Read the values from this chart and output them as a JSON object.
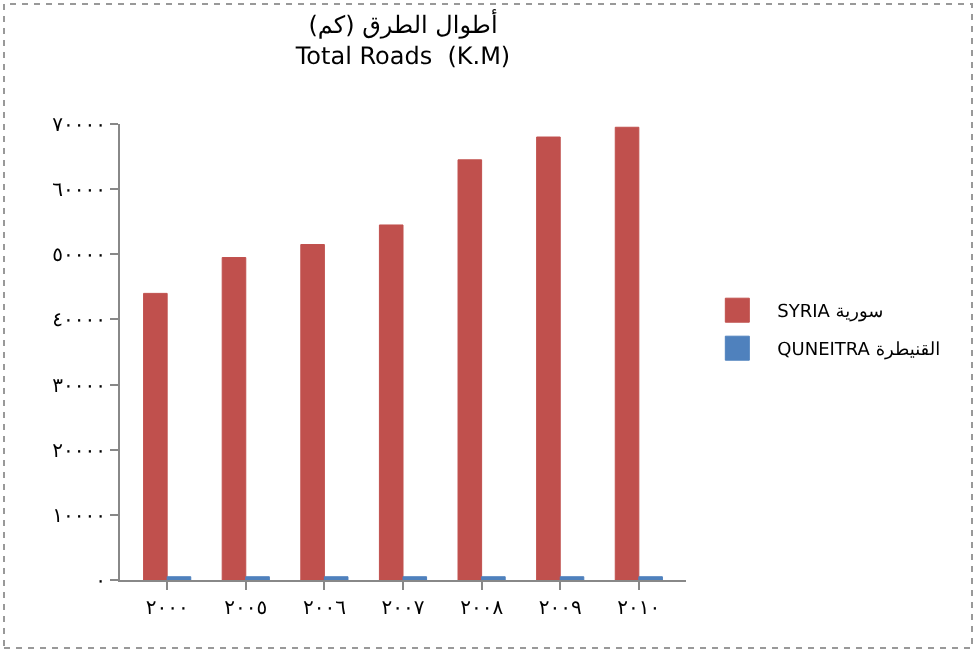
{
  "chart_data": {
    "type": "bar",
    "title": "أطوال الطرق (كم)",
    "subtitle": "Total Roads  (K.M)",
    "categories": [
      "٢٠٠٠",
      "٢٠٠٥",
      "٢٠٠٦",
      "٢٠٠٧",
      "٢٠٠٨",
      "٢٠٠٩",
      "٢٠١٠"
    ],
    "series": [
      {
        "name": "SYRIA سورية",
        "color": "#c0504d",
        "values": [
          44000,
          49500,
          51500,
          54500,
          64500,
          68000,
          69500
        ]
      },
      {
        "name": "QUNEITRA القنيطرة",
        "color": "#4f81bd",
        "values": [
          500,
          500,
          500,
          500,
          500,
          500,
          500
        ]
      }
    ],
    "ylim": [
      0,
      70000
    ],
    "yticks": [
      {
        "value": 0,
        "label": "٠"
      },
      {
        "value": 10000,
        "label": "١٠٠٠٠"
      },
      {
        "value": 20000,
        "label": "٢٠٠٠٠"
      },
      {
        "value": 30000,
        "label": "٣٠٠٠٠"
      },
      {
        "value": 40000,
        "label": "٤٠٠٠٠"
      },
      {
        "value": 50000,
        "label": "٥٠٠٠٠"
      },
      {
        "value": 60000,
        "label": "٦٠٠٠٠"
      },
      {
        "value": 70000,
        "label": "٧٠٠٠٠"
      }
    ],
    "legend": "right"
  }
}
